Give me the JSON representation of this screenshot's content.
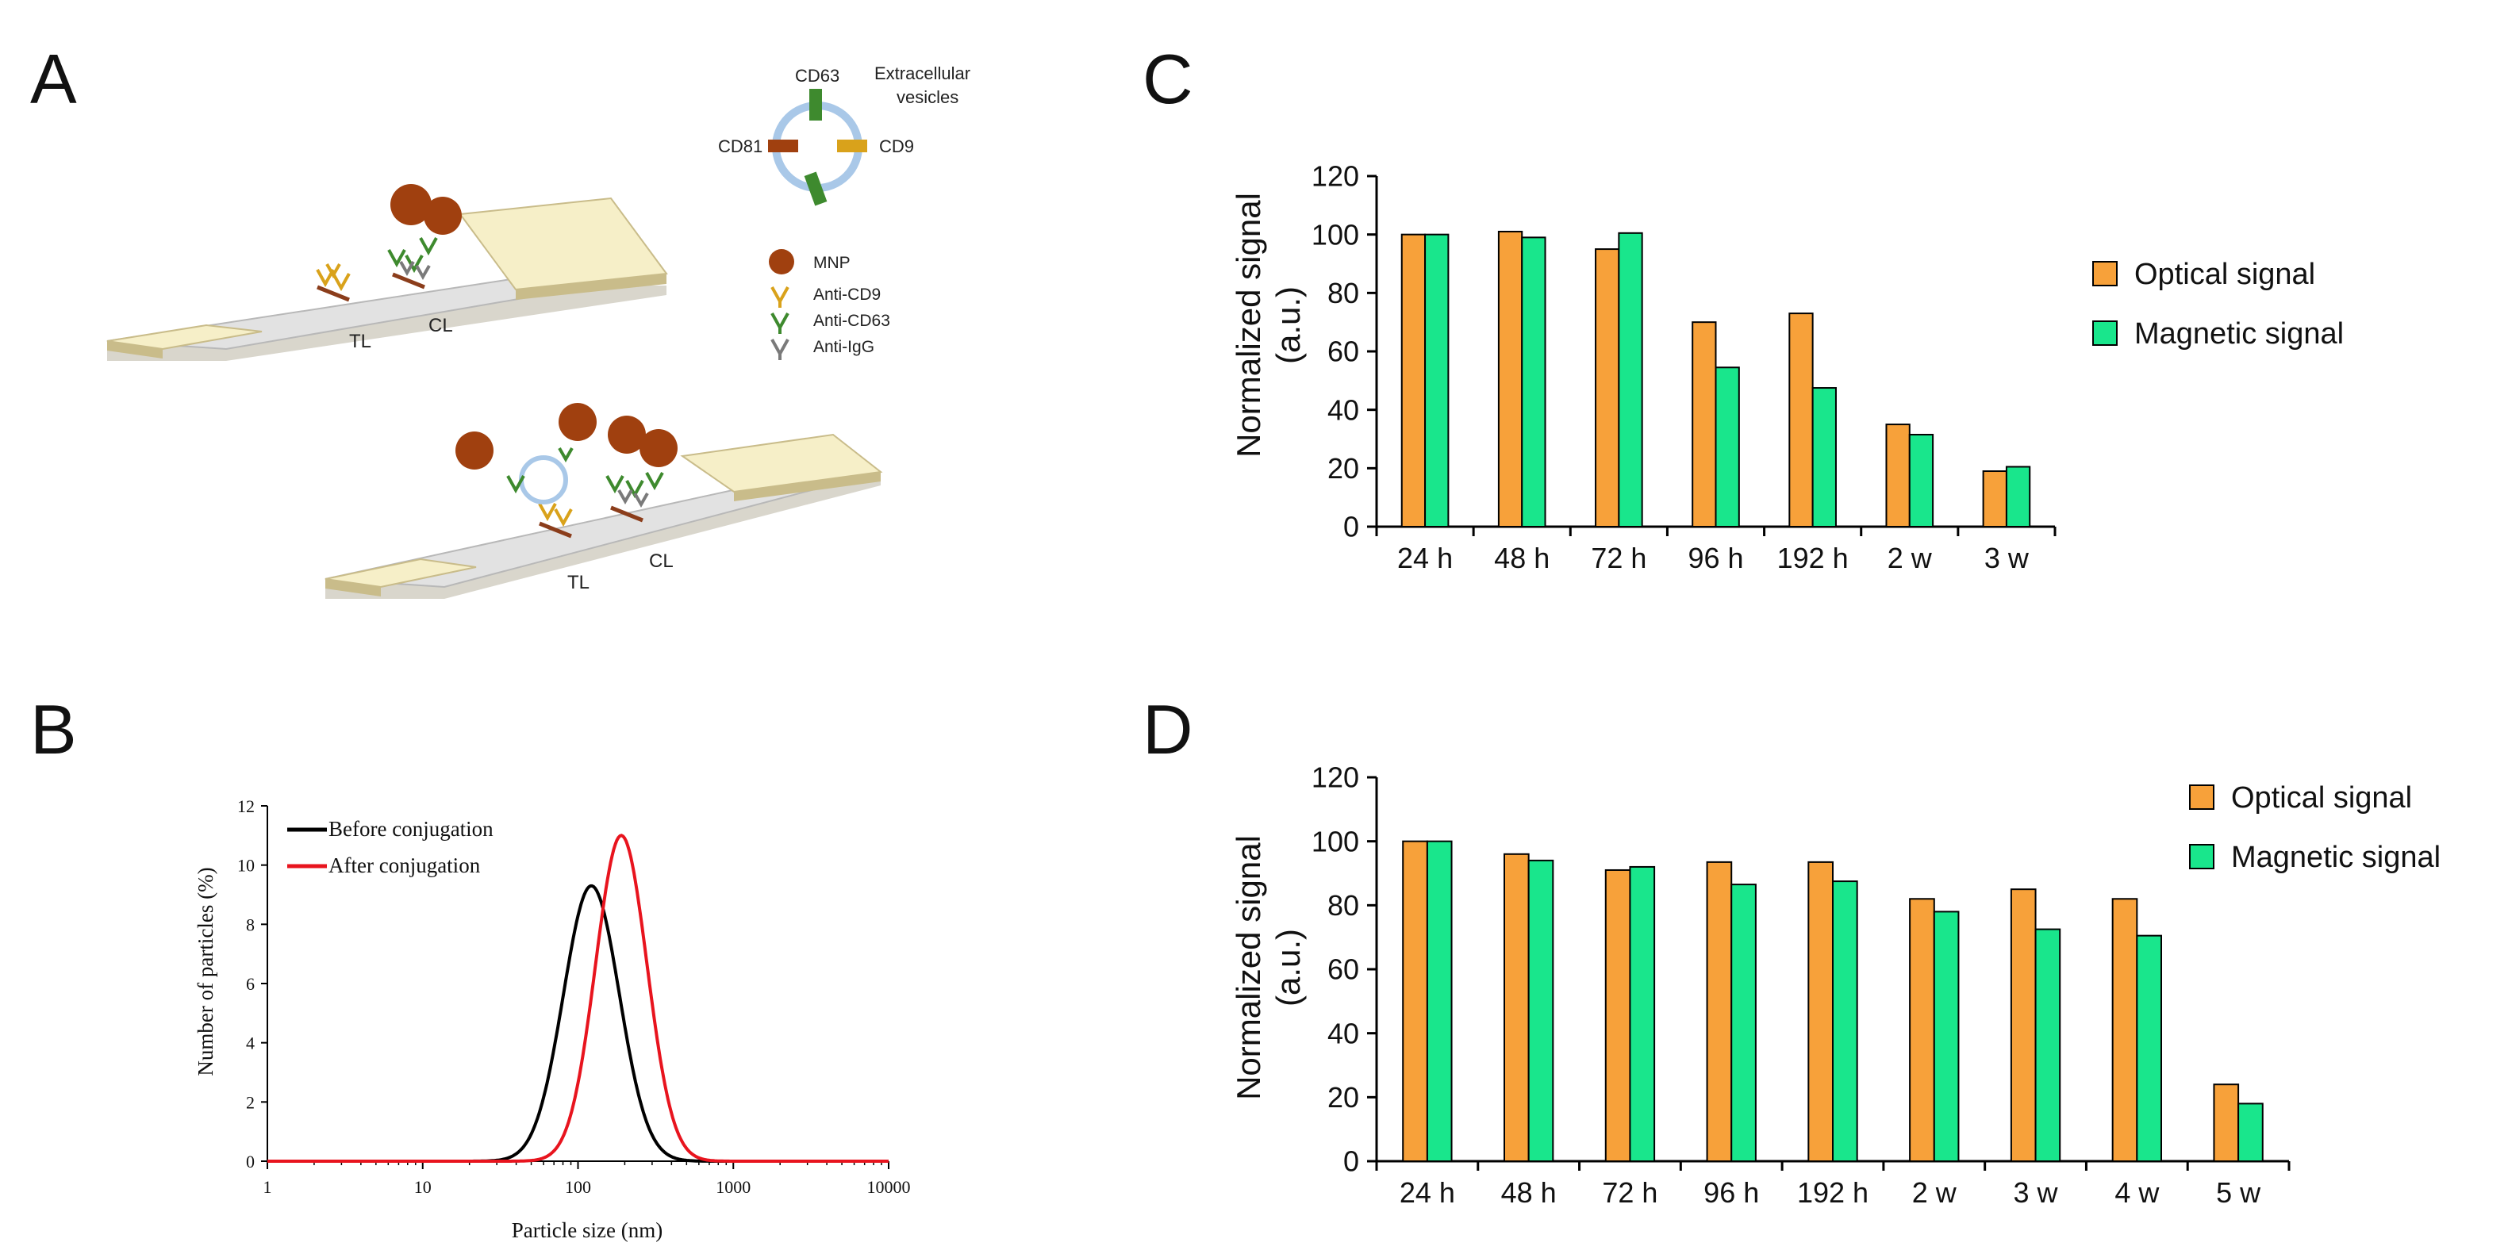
{
  "panels": {
    "a_label": "A",
    "b_label": "B",
    "c_label": "C",
    "d_label": "D"
  },
  "schematic": {
    "vesicle_title_line1": "Extracellular",
    "vesicle_title_line2": "vesicles",
    "cd63": "CD63",
    "cd81": "CD81",
    "cd9": "CD9",
    "legend": [
      {
        "label": "MNP",
        "color": "#a0400f"
      },
      {
        "label": "Anti-CD9",
        "color": "#d9a21b"
      },
      {
        "label": "Anti-CD63",
        "color": "#3e8a2e"
      },
      {
        "label": "Anti-IgG",
        "color": "#7a7a7a"
      }
    ],
    "strip1_tl": "TL",
    "strip1_cl": "CL",
    "strip2_tl": "TL",
    "strip2_cl": "CL"
  },
  "colors": {
    "optical": "#f7a13a",
    "magnetic": "#19e68c",
    "before": "#000000",
    "after": "#e8141e"
  },
  "chart_data": [
    {
      "panel": "B",
      "type": "line",
      "xscale": "log",
      "xlim": [
        1,
        10000
      ],
      "ylim": [
        0,
        12
      ],
      "xticks": [
        1,
        10,
        100,
        1000,
        10000
      ],
      "xtick_labels": [
        "1",
        "10",
        "100",
        "1000",
        "10000"
      ],
      "yticks": [
        0,
        2,
        4,
        6,
        8,
        10,
        12
      ],
      "ytick_labels": [
        "0",
        "2",
        "4",
        "6",
        "8",
        "10",
        "12"
      ],
      "xlabel": "Particle size (nm)",
      "ylabel": "Number of particles (%)",
      "legend_position": "top-left",
      "series": [
        {
          "name": "Before conjugation",
          "peak_x": 122,
          "peak_y": 9.3,
          "log_sigma": 0.18
        },
        {
          "name": "After conjugation",
          "peak_x": 190,
          "peak_y": 11.0,
          "log_sigma": 0.165
        }
      ]
    },
    {
      "panel": "C",
      "type": "bar",
      "ylim": [
        0,
        120
      ],
      "yticks": [
        0,
        20,
        40,
        60,
        80,
        100,
        120
      ],
      "ytick_labels": [
        "0",
        "20",
        "40",
        "60",
        "80",
        "100",
        "120"
      ],
      "ylabel_line1": "Normalized signal",
      "ylabel_line2": "(a.u.)",
      "legend_position": "right",
      "categories": [
        "24 h",
        "48 h",
        "72 h",
        "96 h",
        "192 h",
        "2 w",
        "3 w"
      ],
      "series": [
        {
          "name": "Optical signal",
          "values": [
            100,
            101,
            95,
            70,
            73,
            35,
            19
          ]
        },
        {
          "name": "Magnetic signal",
          "values": [
            100,
            99,
            100.5,
            54.5,
            47.5,
            31.5,
            20.5
          ]
        }
      ]
    },
    {
      "panel": "D",
      "type": "bar",
      "ylim": [
        0,
        120
      ],
      "yticks": [
        0,
        20,
        40,
        60,
        80,
        100,
        120
      ],
      "ytick_labels": [
        "0",
        "20",
        "40",
        "60",
        "80",
        "100",
        "120"
      ],
      "ylabel_line1": "Normalized signal",
      "ylabel_line2": "(a.u.)",
      "legend_position": "right",
      "categories": [
        "24 h",
        "48 h",
        "72 h",
        "96 h",
        "192 h",
        "2 w",
        "3 w",
        "4 w",
        "5 w"
      ],
      "series": [
        {
          "name": "Optical signal",
          "values": [
            100,
            96,
            91,
            93.5,
            93.5,
            82,
            85,
            82,
            24
          ]
        },
        {
          "name": "Magnetic signal",
          "values": [
            100,
            94,
            92,
            86.5,
            87.5,
            78,
            72.5,
            70.5,
            18
          ]
        }
      ]
    }
  ]
}
